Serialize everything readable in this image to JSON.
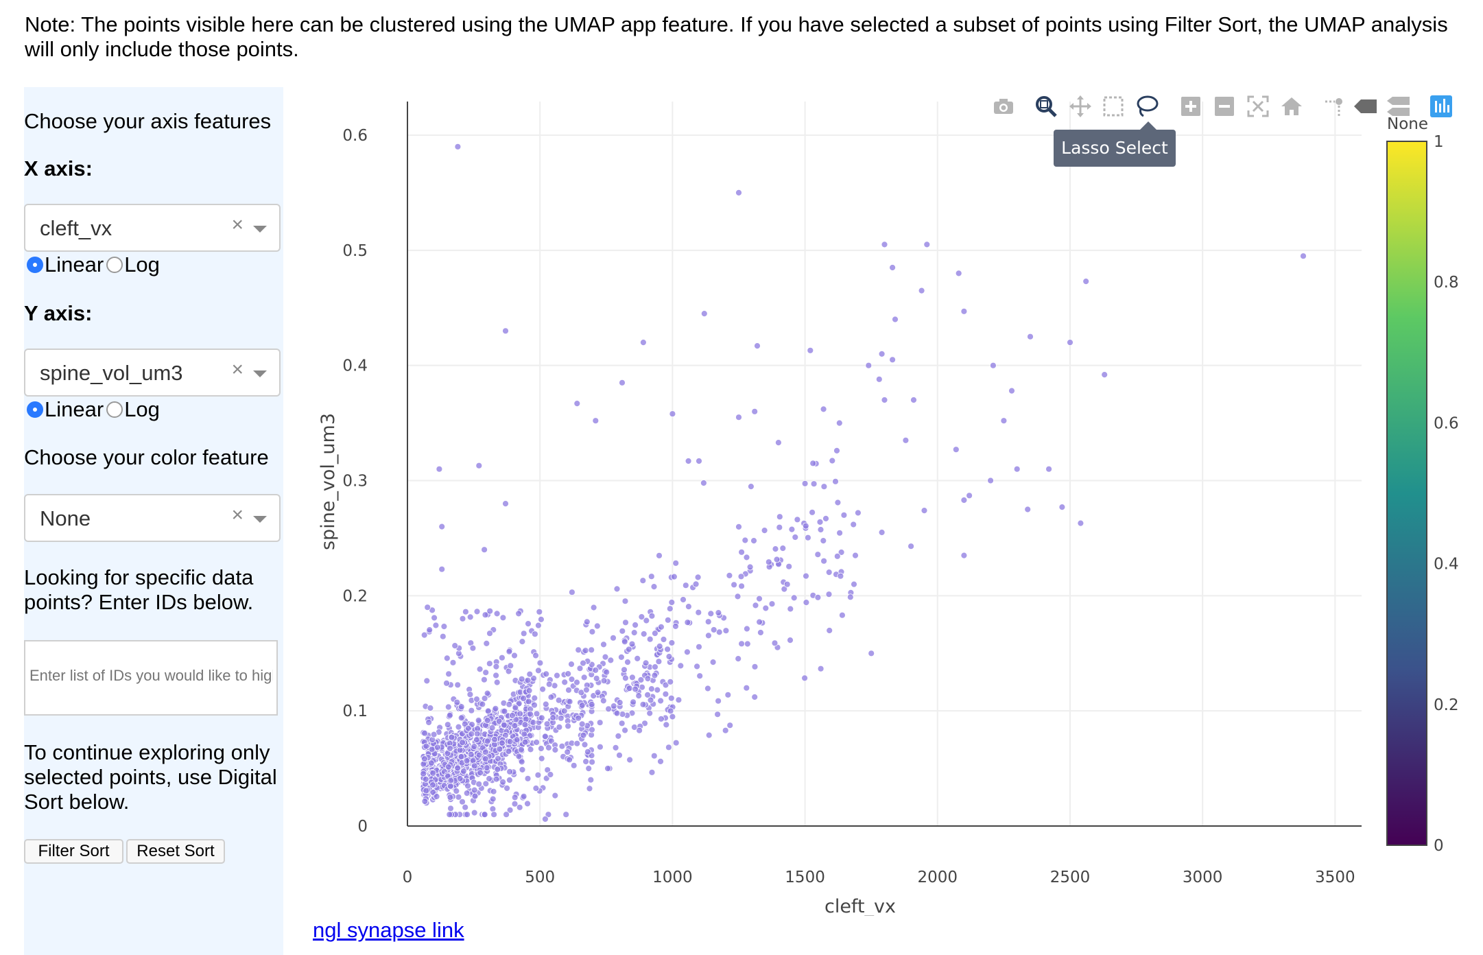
{
  "note": "Note: The points visible here can be clustered using the UMAP app feature. If you have selected a subset of points using Filter Sort, the UMAP analysis will only include those points.",
  "sidebar": {
    "choose_axis_title": "Choose your axis features",
    "x_axis_label": "X axis:",
    "x_axis_value": "cleft_vx",
    "y_axis_label": "Y axis:",
    "y_axis_value": "spine_vol_um3",
    "scale_linear": "Linear",
    "scale_log": "Log",
    "x_scale_selected": "Linear",
    "y_scale_selected": "Linear",
    "color_title": "Choose your color feature",
    "color_value": "None",
    "clear_symbol": "×",
    "ids_title": "Looking for specific data points? Enter IDs below.",
    "ids_placeholder": "Enter list of IDs you would like to highlight",
    "continue_text": "To continue exploring only selected points, use Digital Sort below.",
    "filter_button": "Filter Sort",
    "reset_button": "Reset Sort"
  },
  "toolbar": {
    "tooltip": "Lasso Select",
    "icons": [
      "camera-icon",
      "zoom-icon",
      "pan-icon",
      "box-select-icon",
      "lasso-select-icon",
      "zoom-in-icon",
      "zoom-out-icon",
      "autoscale-icon",
      "reset-axes-icon",
      "spike-lines-icon",
      "hover-closest-icon",
      "hover-compare-icon",
      "plotly-logo-icon"
    ],
    "active_color": "#2a3f5f",
    "inactive_color": "#b5b5b5"
  },
  "link_text": "ngl synapse link",
  "colors": {
    "point": "#8c7ae0",
    "sidebar_bg": "#eef6ff",
    "link": "#0000ee"
  },
  "chart_data": {
    "type": "scatter",
    "title": "",
    "xlabel": "cleft_vx",
    "ylabel": "spine_vol_um3",
    "xlim": [
      0,
      3600
    ],
    "ylim": [
      0,
      0.6
    ],
    "x_ticks": [
      0,
      500,
      1000,
      1500,
      2000,
      2500,
      3000,
      3500
    ],
    "x_tick_labels": [
      "0",
      "500",
      "1000",
      "1500",
      "2000",
      "2500",
      "3000",
      "3500"
    ],
    "y_ticks": [
      0,
      0.1,
      0.2,
      0.3,
      0.4,
      0.5,
      0.6
    ],
    "y_tick_labels": [
      "0",
      "0.1",
      "0.2",
      "0.3",
      "0.4",
      "0.5",
      "0.6"
    ],
    "grid": true,
    "colorbar": {
      "title": "None",
      "range": [
        0,
        1
      ],
      "ticks": [
        0,
        0.2,
        0.4,
        0.6,
        0.8,
        1
      ],
      "tick_labels": [
        "0",
        "0.2",
        "0.4",
        "0.6",
        "0.8",
        "1"
      ],
      "colorscale": [
        "#440154",
        "#3b528b",
        "#21908d",
        "#5dc963",
        "#fde725"
      ]
    },
    "outliers": [
      [
        190,
        0.59
      ],
      [
        1250,
        0.55
      ],
      [
        370,
        0.43
      ],
      [
        1960,
        0.505
      ],
      [
        1800,
        0.505
      ],
      [
        3380,
        0.495
      ],
      [
        2080,
        0.48
      ],
      [
        1830,
        0.485
      ],
      [
        1940,
        0.465
      ],
      [
        2560,
        0.473
      ],
      [
        1120,
        0.445
      ],
      [
        2100,
        0.447
      ],
      [
        1840,
        0.44
      ],
      [
        890,
        0.42
      ],
      [
        1320,
        0.417
      ],
      [
        2350,
        0.425
      ],
      [
        2500,
        0.42
      ],
      [
        1520,
        0.413
      ],
      [
        1740,
        0.4
      ],
      [
        1790,
        0.41
      ],
      [
        1830,
        0.405
      ],
      [
        2210,
        0.4
      ],
      [
        2630,
        0.392
      ],
      [
        1780,
        0.388
      ],
      [
        1800,
        0.37
      ],
      [
        1910,
        0.37
      ],
      [
        2280,
        0.378
      ],
      [
        810,
        0.385
      ],
      [
        640,
        0.367
      ],
      [
        710,
        0.352
      ],
      [
        1000,
        0.358
      ],
      [
        1250,
        0.355
      ],
      [
        1310,
        0.36
      ],
      [
        2250,
        0.352
      ],
      [
        1570,
        0.362
      ],
      [
        1630,
        0.35
      ],
      [
        1880,
        0.335
      ],
      [
        2070,
        0.327
      ],
      [
        2420,
        0.31
      ],
      [
        2300,
        0.31
      ],
      [
        2200,
        0.3
      ],
      [
        2340,
        0.275
      ],
      [
        2470,
        0.277
      ],
      [
        2540,
        0.263
      ],
      [
        2100,
        0.283
      ],
      [
        2120,
        0.287
      ],
      [
        1950,
        0.274
      ],
      [
        1700,
        0.272
      ],
      [
        1790,
        0.255
      ],
      [
        1900,
        0.243
      ],
      [
        2100,
        0.235
      ],
      [
        1750,
        0.15
      ],
      [
        1310,
        0.112
      ],
      [
        1000,
        0.095
      ],
      [
        1170,
        0.097
      ],
      [
        1200,
        0.083
      ],
      [
        520,
        0.006
      ],
      [
        120,
        0.31
      ],
      [
        130,
        0.26
      ],
      [
        270,
        0.313
      ],
      [
        290,
        0.24
      ],
      [
        370,
        0.28
      ],
      [
        130,
        0.223
      ],
      [
        1060,
        0.317
      ],
      [
        1100,
        0.317
      ],
      [
        1530,
        0.315
      ],
      [
        1620,
        0.326
      ],
      [
        1400,
        0.333
      ],
      [
        1690,
        0.235
      ]
    ],
    "cluster_count": 1300,
    "cluster_description": "dense band from (60, 0.03) to (1000, 0.2) with spread"
  }
}
